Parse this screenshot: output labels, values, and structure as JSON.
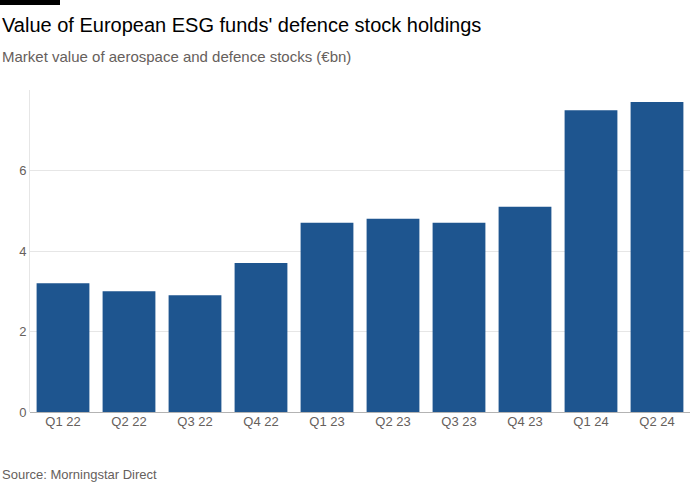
{
  "chart_data": {
    "type": "bar",
    "title": "Value of European ESG funds' defence stock holdings",
    "subtitle": "Market value of aerospace and defence stocks (€bn)",
    "source": "Source: Morningstar Direct",
    "categories": [
      "Q1 22",
      "Q2 22",
      "Q3 22",
      "Q4 22",
      "Q1 23",
      "Q2 23",
      "Q3 23",
      "Q4 23",
      "Q1 24",
      "Q2 24"
    ],
    "values": [
      3.2,
      3.0,
      2.9,
      3.7,
      4.7,
      4.8,
      4.7,
      5.1,
      7.5,
      7.7
    ],
    "color": "#1e558f",
    "ylim": [
      0,
      8
    ],
    "yticks": [
      0,
      2,
      4,
      6
    ],
    "grid": true
  }
}
